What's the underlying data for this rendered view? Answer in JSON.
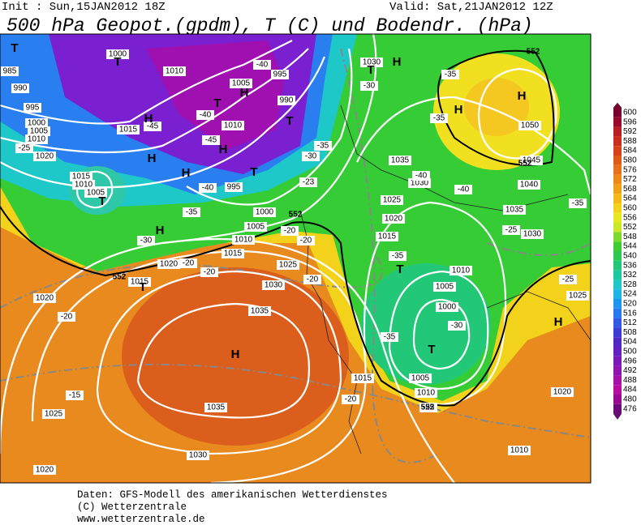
{
  "header": {
    "init": "Init : Sun,15JAN2012 18Z",
    "valid": "Valid: Sat,21JAN2012 12Z",
    "title": "500 hPa Geopot.(gpdm), T (C) und Bodendr. (hPa)"
  },
  "scale": {
    "labels": [
      600,
      596,
      592,
      588,
      584,
      580,
      576,
      572,
      568,
      564,
      560,
      556,
      552,
      548,
      544,
      540,
      536,
      532,
      528,
      524,
      520,
      516,
      512,
      508,
      504,
      500,
      496,
      492,
      488,
      484,
      480,
      476
    ],
    "colors": [
      "#7a0030",
      "#9a0a2a",
      "#b81e22",
      "#cc2e1e",
      "#d8401a",
      "#e05a18",
      "#e87018",
      "#ee8818",
      "#f2a018",
      "#f4b818",
      "#f2d21a",
      "#e8e820",
      "#c8e828",
      "#7ed830",
      "#3ecc32",
      "#2ec850",
      "#22c878",
      "#1ec8a0",
      "#1ec8c8",
      "#1eb4e6",
      "#1e96f0",
      "#2878f0",
      "#3258e6",
      "#3c3cd2",
      "#5028c8",
      "#6420c0",
      "#7a18b8",
      "#9014b0",
      "#a810a8",
      "#b80ca0",
      "#9a0a90",
      "#6a0a78"
    ]
  },
  "map": {
    "pressure_labels": [
      1000,
      985,
      990,
      995,
      1000,
      1005,
      1010,
      1020,
      1015,
      1010,
      1005,
      1015,
      1010,
      1005,
      995,
      990,
      1010,
      995,
      1000,
      1005,
      1010,
      1015,
      1020,
      1015,
      1020,
      1025,
      1030,
      1035,
      1035,
      1030,
      1025,
      1020,
      1015,
      1005,
      1010,
      1000,
      1005,
      1010,
      1015,
      1020,
      1025,
      1030,
      1035,
      1040,
      1045,
      1050,
      1035,
      1030,
      1030,
      1025,
      1020,
      1010
    ],
    "temp_labels": [
      -40,
      -45,
      -40,
      -45,
      -40,
      -35,
      -30,
      -25,
      -20,
      -20,
      -20,
      -15,
      -20,
      -25,
      -30,
      -35,
      -35,
      -40,
      -40,
      -35,
      -35,
      -30,
      -25,
      -35,
      -25,
      -23,
      -30,
      -35,
      -20,
      -20,
      -20
    ],
    "centers": [
      "T",
      "H",
      "H",
      "H",
      "H",
      "H",
      "H",
      "H",
      "H",
      "H",
      "H",
      "H",
      "T",
      "T",
      "T",
      "T",
      "T",
      "T",
      "T",
      "T",
      "T"
    ],
    "height_labels": [
      552,
      552,
      552,
      552,
      552
    ]
  },
  "footer": {
    "source": "Daten: GFS-Modell des amerikanischen Wetterdienstes",
    "copyright": "(C) Wetterzentrale",
    "url": "www.wetterzentrale.de"
  }
}
